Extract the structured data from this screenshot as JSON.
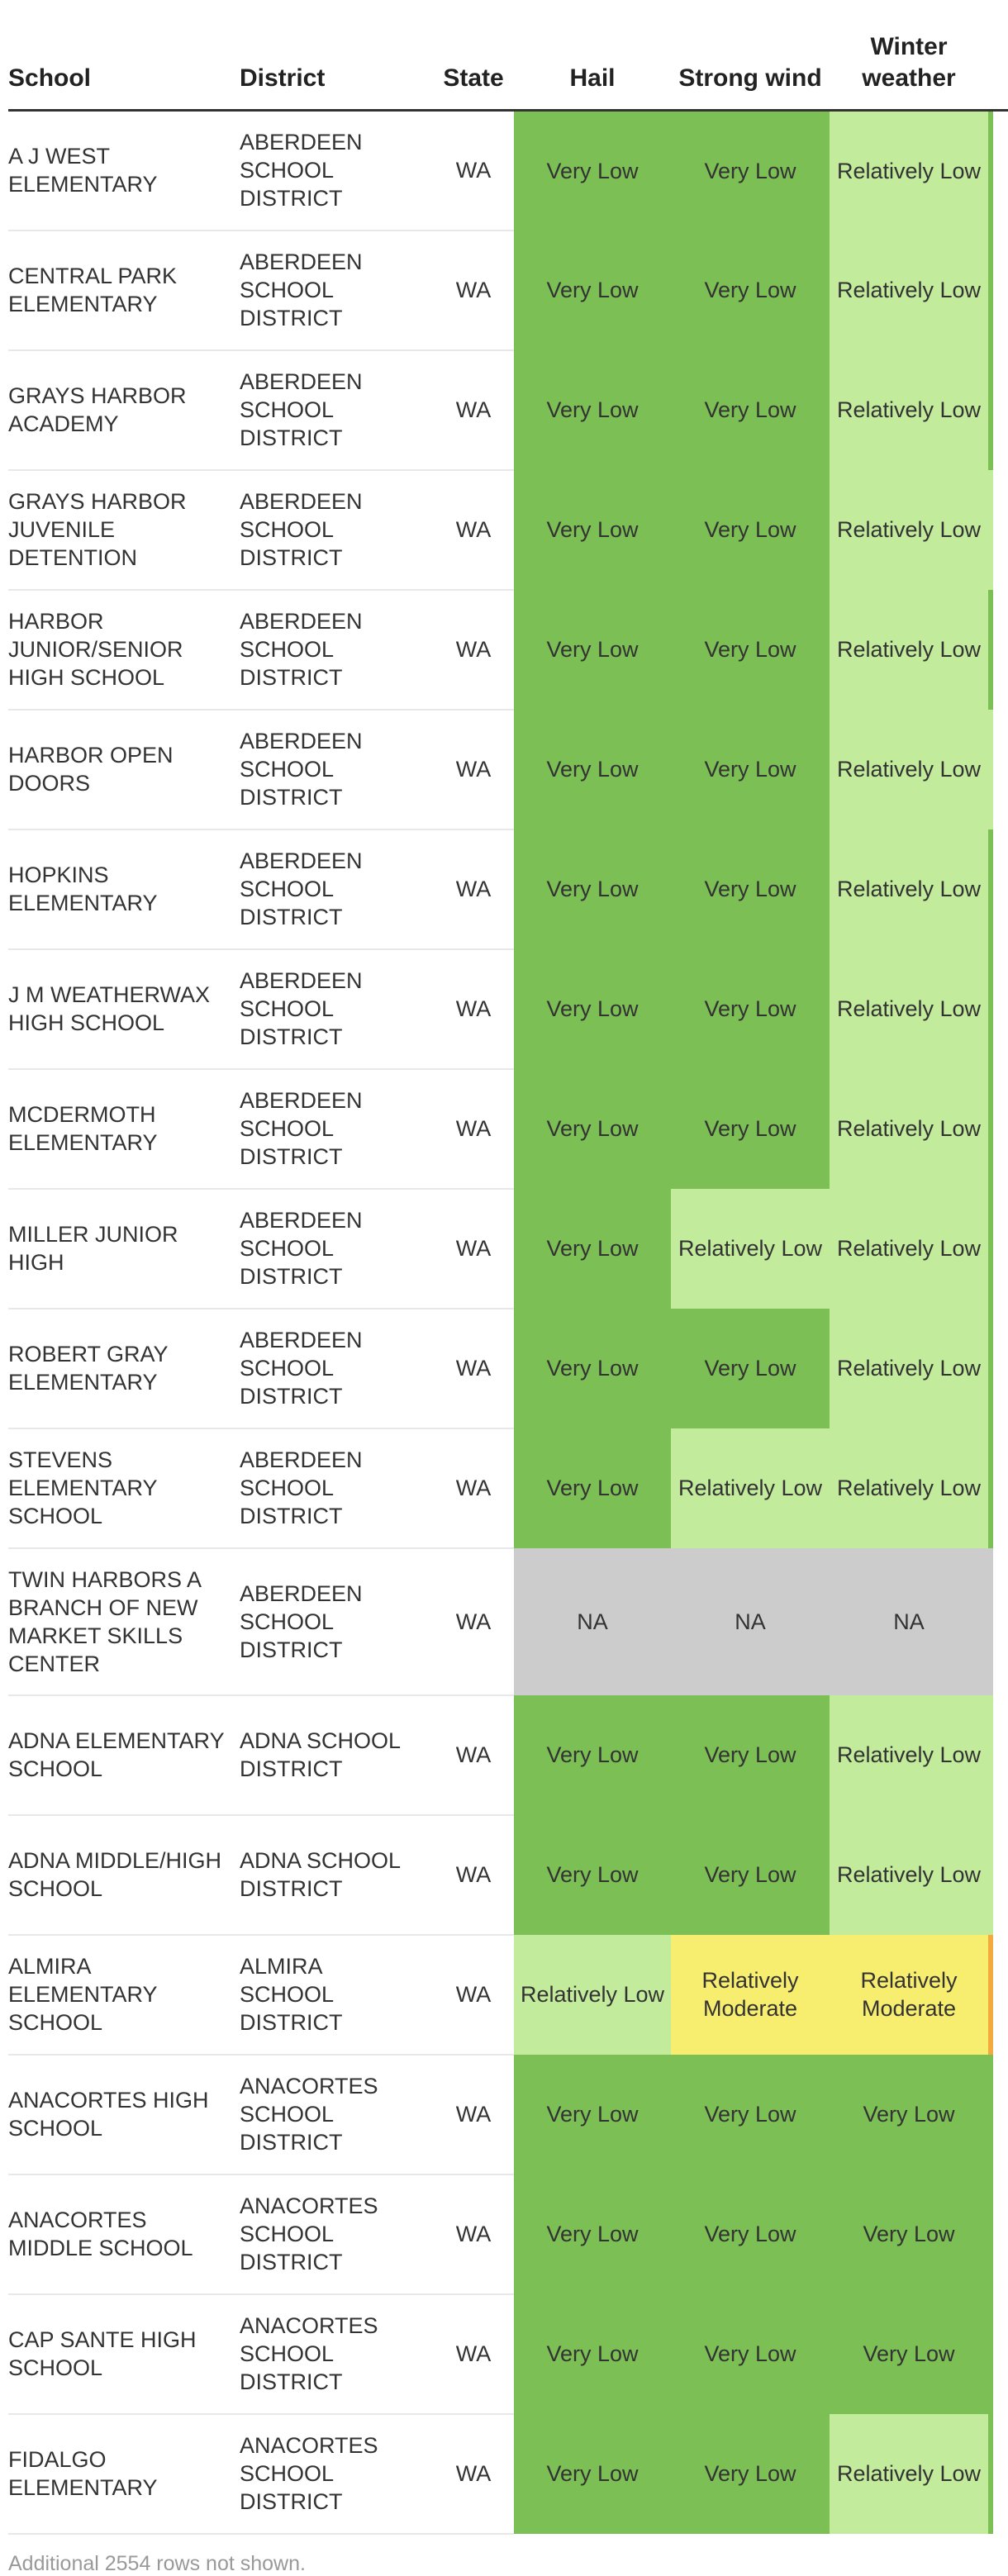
{
  "table": {
    "headers": {
      "school": "School",
      "district": "District",
      "state": "State",
      "hail": "Hail",
      "strong_wind": "Strong wind",
      "winter_weather": "Winter weather"
    },
    "rows": [
      {
        "school": "A J WEST ELEMENTARY",
        "district": "ABERDEEN SCHOOL DISTRICT",
        "state": "WA",
        "hail": "Very Low",
        "wind": "Very Low",
        "winter": "Relatively Low",
        "edge": "Very Low"
      },
      {
        "school": "CENTRAL PARK ELEMENTARY",
        "district": "ABERDEEN SCHOOL DISTRICT",
        "state": "WA",
        "hail": "Very Low",
        "wind": "Very Low",
        "winter": "Relatively Low",
        "edge": "Very Low"
      },
      {
        "school": "GRAYS HARBOR ACADEMY",
        "district": "ABERDEEN SCHOOL DISTRICT",
        "state": "WA",
        "hail": "Very Low",
        "wind": "Very Low",
        "winter": "Relatively Low",
        "edge": "Very Low"
      },
      {
        "school": "GRAYS HARBOR JUVENILE DETENTION",
        "district": "ABERDEEN SCHOOL DISTRICT",
        "state": "WA",
        "hail": "Very Low",
        "wind": "Very Low",
        "winter": "Relatively Low",
        "edge": "Relatively Low"
      },
      {
        "school": "HARBOR JUNIOR/SENIOR HIGH SCHOOL",
        "district": "ABERDEEN SCHOOL DISTRICT",
        "state": "WA",
        "hail": "Very Low",
        "wind": "Very Low",
        "winter": "Relatively Low",
        "edge": "Very Low"
      },
      {
        "school": "HARBOR OPEN DOORS",
        "district": "ABERDEEN SCHOOL DISTRICT",
        "state": "WA",
        "hail": "Very Low",
        "wind": "Very Low",
        "winter": "Relatively Low",
        "edge": "Relatively Low"
      },
      {
        "school": "HOPKINS ELEMENTARY",
        "district": "ABERDEEN SCHOOL DISTRICT",
        "state": "WA",
        "hail": "Very Low",
        "wind": "Very Low",
        "winter": "Relatively Low",
        "edge": "Very Low"
      },
      {
        "school": "J M WEATHERWAX HIGH SCHOOL",
        "district": "ABERDEEN SCHOOL DISTRICT",
        "state": "WA",
        "hail": "Very Low",
        "wind": "Very Low",
        "winter": "Relatively Low",
        "edge": "Very Low"
      },
      {
        "school": "MCDERMOTH ELEMENTARY",
        "district": "ABERDEEN SCHOOL DISTRICT",
        "state": "WA",
        "hail": "Very Low",
        "wind": "Very Low",
        "winter": "Relatively Low",
        "edge": "Very Low"
      },
      {
        "school": "MILLER JUNIOR HIGH",
        "district": "ABERDEEN SCHOOL DISTRICT",
        "state": "WA",
        "hail": "Very Low",
        "wind": "Relatively Low",
        "winter": "Relatively Low",
        "edge": "Very Low"
      },
      {
        "school": "ROBERT GRAY ELEMENTARY",
        "district": "ABERDEEN SCHOOL DISTRICT",
        "state": "WA",
        "hail": "Very Low",
        "wind": "Very Low",
        "winter": "Relatively Low",
        "edge": "Very Low"
      },
      {
        "school": "STEVENS ELEMENTARY SCHOOL",
        "district": "ABERDEEN SCHOOL DISTRICT",
        "state": "WA",
        "hail": "Very Low",
        "wind": "Relatively Low",
        "winter": "Relatively Low",
        "edge": "Very Low"
      },
      {
        "school": "TWIN HARBORS A BRANCH OF NEW MARKET SKILLS CENTER",
        "district": "ABERDEEN SCHOOL DISTRICT",
        "state": "WA",
        "hail": "NA",
        "wind": "NA",
        "winter": "NA",
        "edge": "NA",
        "tall": true
      },
      {
        "school": "ADNA ELEMENTARY SCHOOL",
        "district": "ADNA SCHOOL DISTRICT",
        "state": "WA",
        "hail": "Very Low",
        "wind": "Very Low",
        "winter": "Relatively Low",
        "edge": "Relatively Low"
      },
      {
        "school": "ADNA MIDDLE/HIGH SCHOOL",
        "district": "ADNA SCHOOL DISTRICT",
        "state": "WA",
        "hail": "Very Low",
        "wind": "Very Low",
        "winter": "Relatively Low",
        "edge": "Relatively Low"
      },
      {
        "school": "ALMIRA ELEMENTARY SCHOOL",
        "district": "ALMIRA SCHOOL DISTRICT",
        "state": "WA",
        "hail": "Relatively Low",
        "wind": "Relatively Moderate",
        "winter": "Relatively Moderate",
        "edge": "Relatively High"
      },
      {
        "school": "ANACORTES HIGH SCHOOL",
        "district": "ANACORTES SCHOOL DISTRICT",
        "state": "WA",
        "hail": "Very Low",
        "wind": "Very Low",
        "winter": "Very Low",
        "edge": "Very Low"
      },
      {
        "school": "ANACORTES MIDDLE SCHOOL",
        "district": "ANACORTES SCHOOL DISTRICT",
        "state": "WA",
        "hail": "Very Low",
        "wind": "Very Low",
        "winter": "Very Low",
        "edge": "Very Low"
      },
      {
        "school": "CAP SANTE HIGH SCHOOL",
        "district": "ANACORTES SCHOOL DISTRICT",
        "state": "WA",
        "hail": "Very Low",
        "wind": "Very Low",
        "winter": "Very Low",
        "edge": "Very Low"
      },
      {
        "school": "FIDALGO ELEMENTARY",
        "district": "ANACORTES SCHOOL DISTRICT",
        "state": "WA",
        "hail": "Very Low",
        "wind": "Very Low",
        "winter": "Relatively Low",
        "edge": "Very Low"
      }
    ],
    "risk_colors": {
      "Very Low": "#7cbf54",
      "Relatively Low": "#c2eb9b",
      "Relatively Moderate": "#f7ed6e",
      "Relatively High": "#f3ab40",
      "NA": "#cccccc"
    }
  },
  "footer": {
    "note": "Additional 2554 rows not shown."
  }
}
